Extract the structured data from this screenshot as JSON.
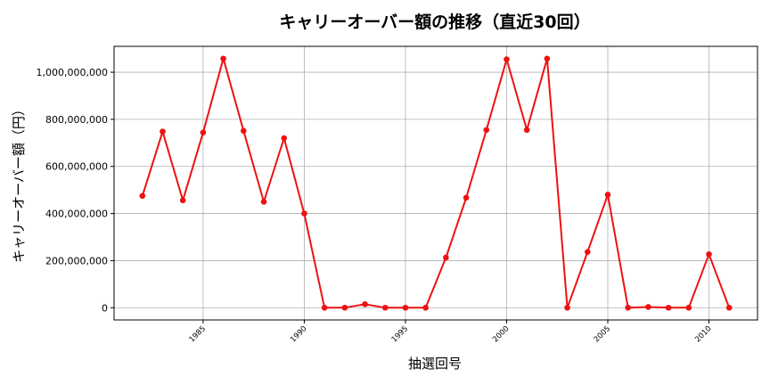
{
  "chart_data": {
    "type": "line",
    "title": "キャリーオーバー額の推移（直近30回）",
    "xlabel": "抽選回号",
    "ylabel": "キャリーオーバー額（円）",
    "grid": true,
    "color": "#ee1111",
    "xlim": [
      1980.6,
      2012.4
    ],
    "ylim": [
      -52000000,
      1110000000
    ],
    "xticks": [
      1985,
      1990,
      1995,
      2000,
      2005,
      2010
    ],
    "yticks": [
      0,
      200000000,
      400000000,
      600000000,
      800000000,
      1000000000
    ],
    "ytick_labels": [
      "0",
      "200,000,000",
      "400,000,000",
      "600,000,000",
      "800,000,000",
      "1,000,000,000"
    ],
    "x": [
      1982,
      1983,
      1984,
      1985,
      1986,
      1987,
      1988,
      1989,
      1990,
      1991,
      1992,
      1993,
      1994,
      1995,
      1996,
      1997,
      1998,
      1999,
      2000,
      2001,
      2002,
      2003,
      2004,
      2005,
      2006,
      2007,
      2008,
      2009,
      2010,
      2011
    ],
    "y": [
      475000000,
      748000000,
      456000000,
      744000000,
      1058000000,
      751000000,
      450000000,
      720000000,
      400000000,
      0,
      0,
      15000000,
      0,
      0,
      0,
      213000000,
      467000000,
      755000000,
      1055000000,
      755000000,
      1058000000,
      0,
      237000000,
      480000000,
      0,
      3000000,
      0,
      0,
      227000000,
      0
    ]
  }
}
